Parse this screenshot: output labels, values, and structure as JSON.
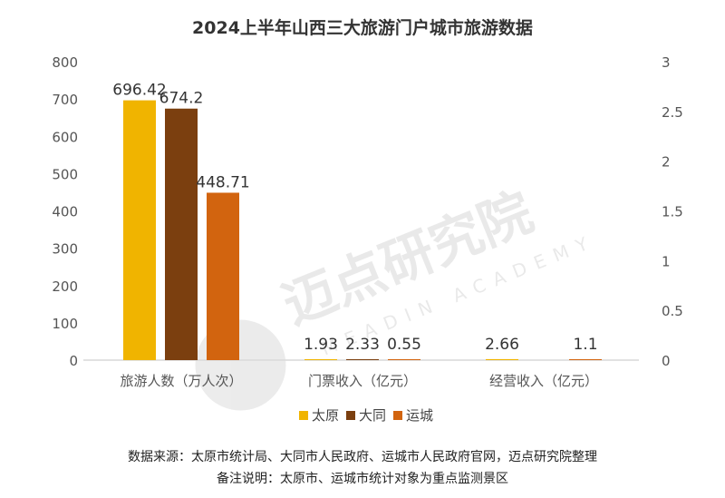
{
  "chart_data": {
    "type": "bar",
    "title": "2024上半年山西三大旅游门户城市旅游数据",
    "categories": [
      "旅游人数（万人次）",
      "门票收入（亿元）",
      "经营收入（亿元）"
    ],
    "series": [
      {
        "name": "太原",
        "color": "#F0B400",
        "values": [
          696.42,
          1.93,
          2.66
        ]
      },
      {
        "name": "大同",
        "color": "#7B3F0F",
        "values": [
          674.2,
          2.33,
          null
        ]
      },
      {
        "name": "运城",
        "color": "#D2640F",
        "values": [
          448.71,
          0.55,
          1.1
        ]
      }
    ],
    "y_left": {
      "range": [
        0,
        800
      ],
      "ticks": [
        0,
        100,
        200,
        300,
        400,
        500,
        600,
        700,
        800
      ]
    },
    "y_right": {
      "range": [
        0,
        3
      ],
      "ticks": [
        "0",
        "0.5",
        "1",
        "1.5",
        "2",
        "2.5",
        "3"
      ]
    },
    "grid": false,
    "legend_placement": "bottom",
    "watermark": "迈点研究院 MEADIN ACADEMY"
  },
  "footer": {
    "source": "数据来源：太原市统计局、大同市人民政府、运城市人民政府官网，迈点研究院整理",
    "note": "备注说明：太原市、运城市统计对象为重点监测景区"
  }
}
